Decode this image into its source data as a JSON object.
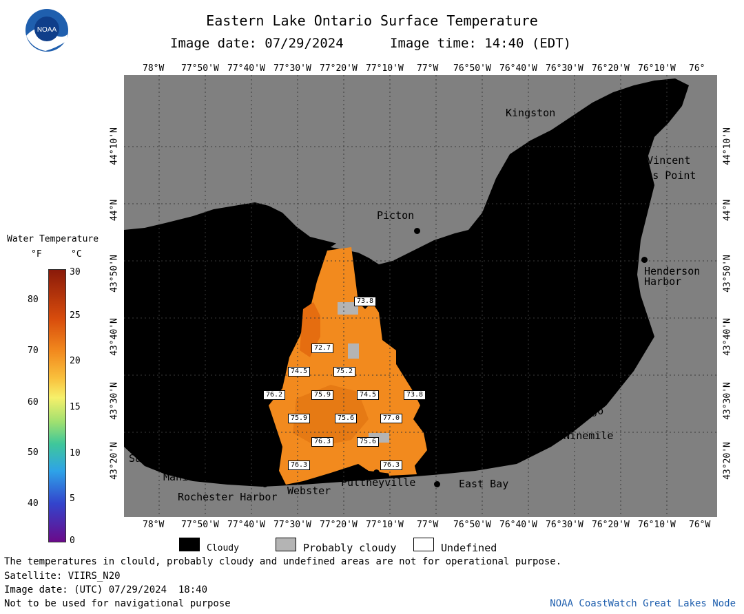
{
  "header": {
    "title": "Eastern Lake Ontario Surface Temperature",
    "image_date_label": "Image date: 07/29/2024",
    "image_time_label": "Image time: 14:40 (EDT)"
  },
  "logo": {
    "text": "NOAA"
  },
  "legend": {
    "title": "Water Temperature",
    "unit_f": "°F",
    "unit_c": "°C",
    "f_ticks": [
      "80",
      "70",
      "60",
      "50",
      "40"
    ],
    "c_ticks": [
      "30",
      "25",
      "20",
      "15",
      "10",
      "5",
      "0"
    ],
    "colors": [
      "#6a0a8a",
      "#3344cc",
      "#2ea3e8",
      "#3fc79a",
      "#9fe070",
      "#f6f06a",
      "#f9c13d",
      "#f28a1e",
      "#d84c0c",
      "#8a1a0a"
    ]
  },
  "axes": {
    "lon_labels": [
      "78°W",
      "77°50'W",
      "77°40'W",
      "77°30'W",
      "77°20'W",
      "77°10'W",
      "77°W",
      "76°50'W",
      "76°40'W",
      "76°30'W",
      "76°20'W",
      "76°10'W",
      "76°W"
    ],
    "lon_labels_top_last": "76°",
    "lat_labels": [
      "44°10'N",
      "44°N",
      "43°50'N",
      "43°40'N",
      "43°30'N",
      "43°20'N"
    ]
  },
  "places": {
    "kingston": "Kingston",
    "cape_vincent": "Cape Vincent",
    "tibbetts_point": "Tibbetts Point",
    "picton": "Picton",
    "henderson_harbor": "Henderson\nHarbor",
    "oswego": "Oswego",
    "west_ninemile": "West Ninemile",
    "sandy_harbour": "Sandy Harbour",
    "manitou_beach": "Manitou Beach",
    "rochester_harbor": "Rochester Harbor",
    "webster": "Webster",
    "pultneyville": "Pultneyville",
    "east_bay": "East Bay"
  },
  "temps": [
    "73.8",
    "72.7",
    "74.5",
    "75.2",
    "76.2",
    "75.9",
    "74.5",
    "73.8",
    "75.9",
    "75.6",
    "77.0",
    "76.3",
    "75.6",
    "76.3",
    "76.3"
  ],
  "map_legend": {
    "cloudy": "Cloudy",
    "probably_cloudy": "Probably cloudy",
    "undefined": "Undefined",
    "cloudy_color": "#000000",
    "probably_cloudy_color": "#b4b4b4",
    "undefined_color": "#ffffff"
  },
  "footer": {
    "disclaimer": "The temperatures in clould, probably cloudy and undefined areas are not for operational purpose.",
    "satellite": "Satellite: VIIRS_N20",
    "utc_date": "Image date: (UTC) 07/29/2024  18:40",
    "navigation": "Not to be used for navigational purpose",
    "credit": "NOAA CoastWatch Great Lakes Node"
  }
}
